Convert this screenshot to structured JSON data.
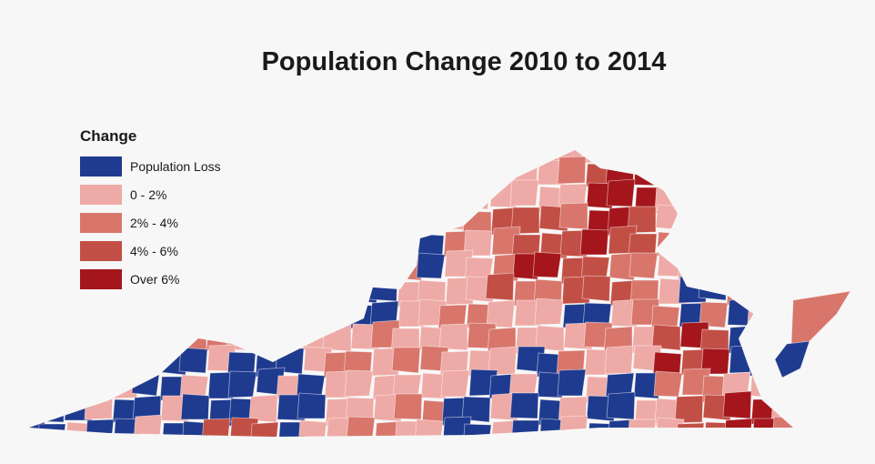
{
  "title": "Population Change 2010 to 2014",
  "legend": {
    "heading": "Change",
    "items": [
      {
        "label": "Population Loss",
        "color": "#1f3b8f"
      },
      {
        "label": "0 - 2%",
        "color": "#eeaaa6"
      },
      {
        "label": "2% - 4%",
        "color": "#d8766c"
      },
      {
        "label": "4% - 6%",
        "color": "#c24f45"
      },
      {
        "label": "Over 6%",
        "color": "#a4161c"
      }
    ]
  },
  "map": {
    "region": "Virginia counties",
    "classes": [
      "Population Loss",
      "0 - 2%",
      "2% - 4%",
      "4% - 6%",
      "Over 6%"
    ]
  }
}
